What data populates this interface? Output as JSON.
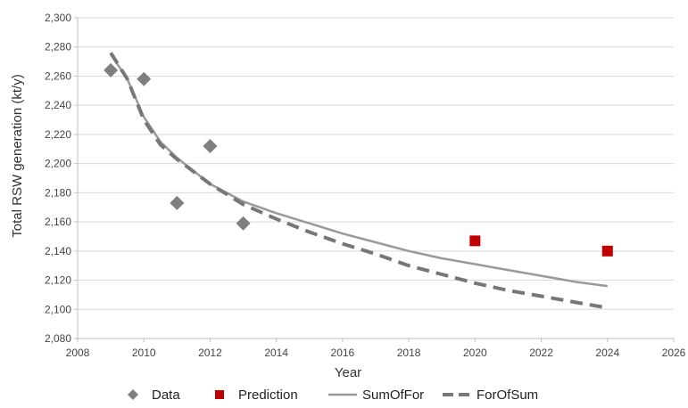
{
  "chart_data": {
    "type": "scatter",
    "title": "",
    "xlabel": "Year",
    "ylabel": "Total RSW generation (kt/y)",
    "xlim": [
      2008,
      2026
    ],
    "ylim": [
      2080,
      2300
    ],
    "x_ticks": [
      "2008",
      "2010",
      "2012",
      "2014",
      "2016",
      "2018",
      "2020",
      "2022",
      "2024",
      "2026"
    ],
    "y_ticks": [
      "2,080",
      "2,100",
      "2,120",
      "2,140",
      "2,160",
      "2,180",
      "2,200",
      "2,220",
      "2,240",
      "2,260",
      "2,280",
      "2,300"
    ],
    "grid": "horizontal",
    "legend_position": "bottom",
    "series": [
      {
        "name": "Data",
        "kind": "markers",
        "marker": "diamond",
        "color": "#7f7f7f",
        "points": [
          [
            2009,
            2264
          ],
          [
            2010,
            2258
          ],
          [
            2011,
            2173
          ],
          [
            2012,
            2212
          ],
          [
            2013,
            2159
          ]
        ]
      },
      {
        "name": "Prediction",
        "kind": "markers",
        "marker": "square",
        "color": "#c00000",
        "points": [
          [
            2020,
            2147
          ],
          [
            2024,
            2140
          ]
        ]
      },
      {
        "name": "SumOfFor",
        "kind": "line",
        "style": "solid",
        "color": "#999999",
        "points": [
          [
            2009,
            2275
          ],
          [
            2009.5,
            2258
          ],
          [
            2010,
            2232
          ],
          [
            2010.5,
            2215
          ],
          [
            2011,
            2204
          ],
          [
            2012,
            2186
          ],
          [
            2013,
            2174
          ],
          [
            2014,
            2166
          ],
          [
            2015,
            2159
          ],
          [
            2016,
            2152
          ],
          [
            2017,
            2146
          ],
          [
            2018,
            2140
          ],
          [
            2019,
            2135
          ],
          [
            2020,
            2131
          ],
          [
            2021,
            2127
          ],
          [
            2022,
            2123
          ],
          [
            2023,
            2119
          ],
          [
            2024,
            2116
          ]
        ]
      },
      {
        "name": "ForOfSum",
        "kind": "line",
        "style": "dashed",
        "color": "#777777",
        "points": [
          [
            2009,
            2276
          ],
          [
            2009.5,
            2258
          ],
          [
            2010,
            2230
          ],
          [
            2010.5,
            2213
          ],
          [
            2011,
            2203
          ],
          [
            2012,
            2186
          ],
          [
            2013,
            2172
          ],
          [
            2014,
            2162
          ],
          [
            2015,
            2153
          ],
          [
            2016,
            2145
          ],
          [
            2017,
            2138
          ],
          [
            2018,
            2130
          ],
          [
            2019,
            2124
          ],
          [
            2020,
            2118
          ],
          [
            2021,
            2113
          ],
          [
            2022,
            2109
          ],
          [
            2023,
            2105
          ],
          [
            2024,
            2101
          ]
        ]
      }
    ]
  }
}
